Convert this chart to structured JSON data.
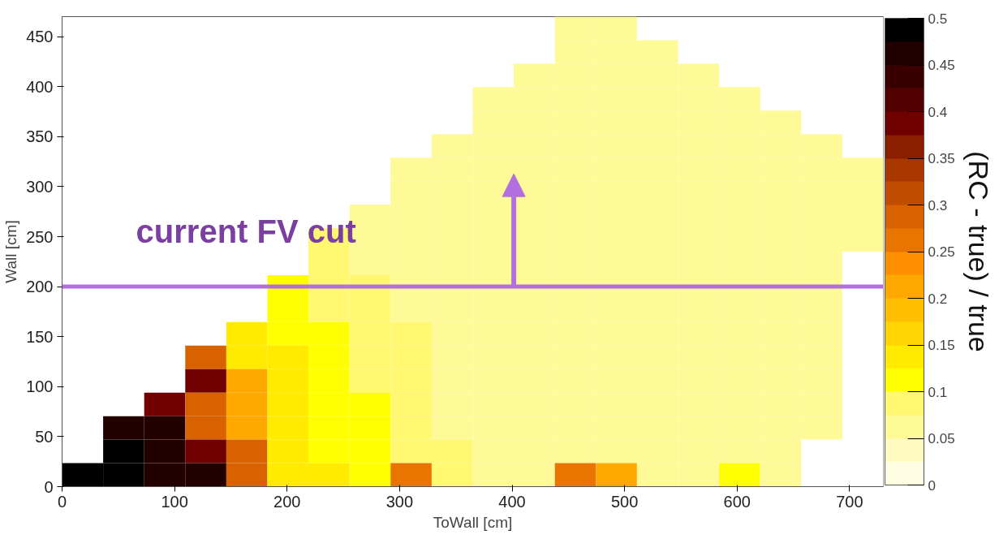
{
  "chart_data": {
    "type": "heatmap",
    "xlabel": "ToWall [cm]",
    "ylabel": "Wall [cm]",
    "clabel": "(RC - true) / true",
    "x": [
      18.25,
      54.75,
      91.25,
      127.75,
      164.25,
      200.75,
      237.25,
      273.75,
      310.25,
      346.75,
      383.25,
      419.75,
      456.25,
      492.75,
      529.25,
      565.75,
      602.25,
      638.75,
      675.25,
      711.75
    ],
    "y": [
      458.25,
      434.75,
      411.25,
      387.75,
      364.25,
      340.75,
      317.25,
      293.75,
      270.25,
      246.75,
      223.25,
      199.75,
      176.25,
      152.75,
      129.25,
      105.75,
      82.25,
      58.75,
      35.25,
      11.75
    ],
    "xlim": [
      0,
      730
    ],
    "ylim": [
      0,
      470
    ],
    "xticks": [
      0,
      100,
      200,
      300,
      400,
      500,
      600,
      700
    ],
    "yticks": [
      0,
      50,
      100,
      150,
      200,
      250,
      300,
      350,
      400,
      450
    ],
    "clim": [
      0,
      0.5
    ],
    "cticks": [
      0,
      0.05,
      0.1,
      0.15,
      0.2,
      0.25,
      0.3,
      0.35,
      0.4,
      0.45,
      0.5
    ],
    "cells": [
      [
        null,
        null,
        null,
        null,
        null,
        null,
        null,
        null,
        null,
        null,
        null,
        null,
        0.06,
        0.06,
        null,
        null,
        null,
        null,
        null,
        null
      ],
      [
        null,
        null,
        null,
        null,
        null,
        null,
        null,
        null,
        null,
        null,
        null,
        null,
        0.06,
        0.06,
        0.06,
        null,
        null,
        null,
        null,
        null
      ],
      [
        null,
        null,
        null,
        null,
        null,
        null,
        null,
        null,
        null,
        null,
        null,
        0.06,
        0.06,
        0.06,
        0.06,
        0.06,
        null,
        null,
        null,
        null
      ],
      [
        null,
        null,
        null,
        null,
        null,
        null,
        null,
        null,
        null,
        null,
        0.06,
        0.06,
        0.06,
        0.06,
        0.06,
        0.06,
        0.06,
        null,
        null,
        null
      ],
      [
        null,
        null,
        null,
        null,
        null,
        null,
        null,
        null,
        null,
        null,
        0.06,
        0.06,
        0.06,
        0.06,
        0.06,
        0.06,
        0.06,
        0.06,
        null,
        null
      ],
      [
        null,
        null,
        null,
        null,
        null,
        null,
        null,
        null,
        null,
        0.06,
        0.06,
        0.06,
        0.06,
        0.06,
        0.06,
        0.06,
        0.06,
        0.06,
        0.06,
        null
      ],
      [
        null,
        null,
        null,
        null,
        null,
        null,
        null,
        null,
        0.07,
        0.06,
        0.06,
        0.06,
        0.06,
        0.06,
        0.06,
        0.06,
        0.06,
        0.06,
        0.06,
        0.06
      ],
      [
        null,
        null,
        null,
        null,
        null,
        null,
        null,
        null,
        0.07,
        0.06,
        0.06,
        0.06,
        0.06,
        0.06,
        0.06,
        0.06,
        0.06,
        0.06,
        0.06,
        0.06
      ],
      [
        null,
        null,
        null,
        null,
        null,
        null,
        null,
        0.07,
        0.07,
        0.06,
        0.06,
        0.06,
        0.06,
        0.06,
        0.06,
        0.06,
        0.06,
        0.06,
        0.06,
        0.06
      ],
      [
        null,
        null,
        null,
        null,
        null,
        null,
        0.09,
        0.07,
        0.07,
        0.06,
        0.06,
        0.06,
        0.06,
        0.06,
        0.06,
        0.06,
        0.06,
        0.06,
        0.06,
        0.06
      ],
      [
        null,
        null,
        null,
        null,
        null,
        null,
        0.09,
        0.07,
        0.07,
        0.07,
        0.06,
        0.06,
        0.06,
        0.06,
        0.06,
        0.06,
        0.06,
        0.06,
        0.06,
        null
      ],
      [
        null,
        null,
        null,
        null,
        null,
        0.1,
        0.09,
        0.09,
        0.07,
        0.07,
        0.06,
        0.06,
        0.06,
        0.06,
        0.06,
        0.06,
        0.06,
        0.06,
        0.06,
        null
      ],
      [
        null,
        null,
        null,
        null,
        null,
        0.1,
        0.09,
        0.09,
        0.07,
        0.07,
        0.06,
        0.06,
        0.06,
        0.06,
        0.06,
        0.06,
        0.06,
        0.06,
        0.06,
        null
      ],
      [
        null,
        null,
        null,
        null,
        0.15,
        0.1,
        0.1,
        0.09,
        0.09,
        0.07,
        0.07,
        0.06,
        0.06,
        0.06,
        0.06,
        0.06,
        0.06,
        0.06,
        0.06,
        null
      ],
      [
        null,
        null,
        null,
        0.3,
        0.15,
        0.15,
        0.1,
        0.09,
        0.09,
        0.07,
        0.07,
        0.06,
        0.06,
        0.06,
        0.06,
        0.06,
        0.06,
        0.06,
        0.06,
        null
      ],
      [
        null,
        null,
        null,
        0.38,
        0.22,
        0.15,
        0.1,
        0.09,
        0.09,
        0.07,
        0.07,
        0.06,
        0.06,
        0.06,
        0.06,
        0.06,
        0.06,
        0.06,
        0.06,
        null
      ],
      [
        null,
        null,
        0.38,
        0.3,
        0.22,
        0.15,
        0.1,
        0.1,
        0.09,
        0.07,
        0.07,
        0.07,
        0.06,
        0.06,
        0.06,
        0.06,
        0.06,
        0.06,
        0.06,
        null
      ],
      [
        null,
        0.45,
        0.45,
        0.3,
        0.22,
        0.15,
        0.1,
        0.1,
        0.09,
        0.07,
        0.07,
        0.07,
        0.06,
        0.06,
        0.06,
        0.06,
        0.06,
        0.06,
        0.06,
        null
      ],
      [
        null,
        0.5,
        0.45,
        0.38,
        0.3,
        0.15,
        0.1,
        0.1,
        0.09,
        0.09,
        0.07,
        0.07,
        0.06,
        0.06,
        0.06,
        0.06,
        0.06,
        0.06,
        null,
        null
      ],
      [
        0.5,
        0.5,
        0.45,
        0.45,
        0.3,
        0.15,
        0.15,
        0.1,
        0.25,
        0.09,
        0.07,
        0.07,
        0.25,
        0.2,
        0.07,
        0.07,
        0.1,
        0.07,
        null,
        null
      ]
    ],
    "ref_lines": [
      {
        "axis": "y",
        "value": 200,
        "label": "current FV cut",
        "color": "#b36fe0"
      }
    ]
  }
}
